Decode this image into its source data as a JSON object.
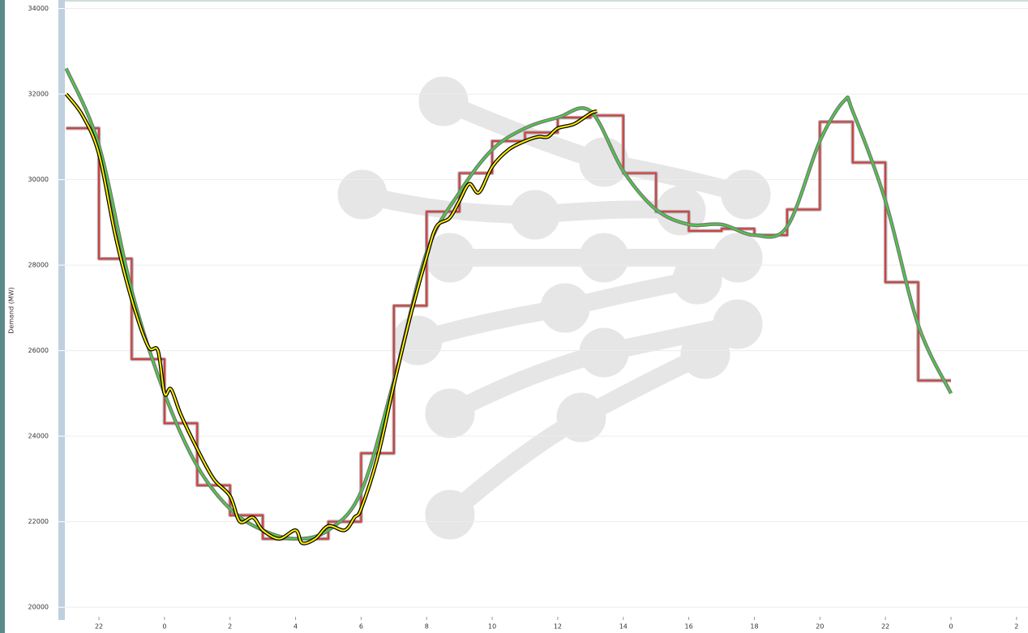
{
  "chart_data": {
    "type": "line",
    "y_label": "Demand (MW)",
    "xlim": [
      20.96,
      50.35
    ],
    "ylim": [
      19700,
      34200
    ],
    "yticks": [
      20000,
      22000,
      24000,
      26000,
      28000,
      30000,
      32000,
      34000
    ],
    "xticks": [
      {
        "value": 22,
        "label": "22"
      },
      {
        "value": 24,
        "label": "0"
      },
      {
        "value": 26,
        "label": "2"
      },
      {
        "value": 28,
        "label": "4"
      },
      {
        "value": 30,
        "label": "6"
      },
      {
        "value": 32,
        "label": "8"
      },
      {
        "value": 34,
        "label": "10"
      },
      {
        "value": 36,
        "label": "12"
      },
      {
        "value": 38,
        "label": "14"
      },
      {
        "value": 40,
        "label": "16"
      },
      {
        "value": 42,
        "label": "18"
      },
      {
        "value": 44,
        "label": "20"
      },
      {
        "value": 46,
        "label": "22"
      },
      {
        "value": 48,
        "label": "0"
      },
      {
        "value": 50,
        "label": "2"
      }
    ],
    "grid": true,
    "series": [
      {
        "color": "#d33a3a",
        "step": true,
        "x": [
          21,
          22,
          23,
          24,
          25,
          26,
          27,
          28,
          29,
          30,
          31,
          32,
          33,
          34,
          35,
          36,
          37,
          38,
          39,
          40,
          41,
          42,
          43,
          44,
          45,
          46,
          47,
          48
        ],
        "values": [
          31200,
          28150,
          25800,
          24300,
          22850,
          22150,
          21600,
          21600,
          22000,
          23600,
          27050,
          29250,
          30150,
          30900,
          31100,
          31450,
          31500,
          30150,
          29250,
          28800,
          28850,
          28700,
          29300,
          31350,
          30400,
          27600,
          25300,
          25300
        ]
      },
      {
        "color": "#4ccc44",
        "step": false,
        "x": [
          21,
          22,
          23,
          24,
          25,
          26,
          27,
          28,
          29,
          30,
          31,
          32,
          33,
          34,
          35,
          36,
          37,
          38,
          39,
          40,
          41,
          42,
          43,
          44,
          44.75,
          45,
          46,
          47,
          48
        ],
        "values": [
          32600,
          30800,
          27400,
          25000,
          23300,
          22300,
          21800,
          21600,
          21800,
          22700,
          25300,
          28300,
          29700,
          30700,
          31200,
          31450,
          31600,
          30200,
          29300,
          28950,
          28950,
          28700,
          28900,
          30900,
          31850,
          31600,
          29500,
          26600,
          25000
        ]
      },
      {
        "color": "#ffee00",
        "step": false,
        "x": [
          21,
          21.5,
          22,
          22.5,
          23,
          23.5,
          23.8,
          24,
          24.2,
          24.5,
          25,
          25.5,
          26,
          26.3,
          26.7,
          27,
          27.5,
          28,
          28.2,
          28.6,
          29,
          29.5,
          29.8,
          30,
          30.5,
          31,
          31.5,
          32,
          32.3,
          32.7,
          33,
          33.3,
          33.6,
          34,
          34.5,
          35,
          35.4,
          35.7,
          36,
          36.5,
          37,
          37.2
        ],
        "values": [
          32000,
          31500,
          30600,
          28700,
          27200,
          26100,
          26000,
          25000,
          25100,
          24500,
          23700,
          23000,
          22600,
          22000,
          22100,
          21800,
          21600,
          21800,
          21500,
          21600,
          21900,
          21800,
          22100,
          22300,
          23500,
          25200,
          26800,
          28200,
          28900,
          29100,
          29500,
          29900,
          29700,
          30300,
          30700,
          30900,
          31000,
          31000,
          31200,
          31300,
          31550,
          31600
        ]
      }
    ]
  }
}
